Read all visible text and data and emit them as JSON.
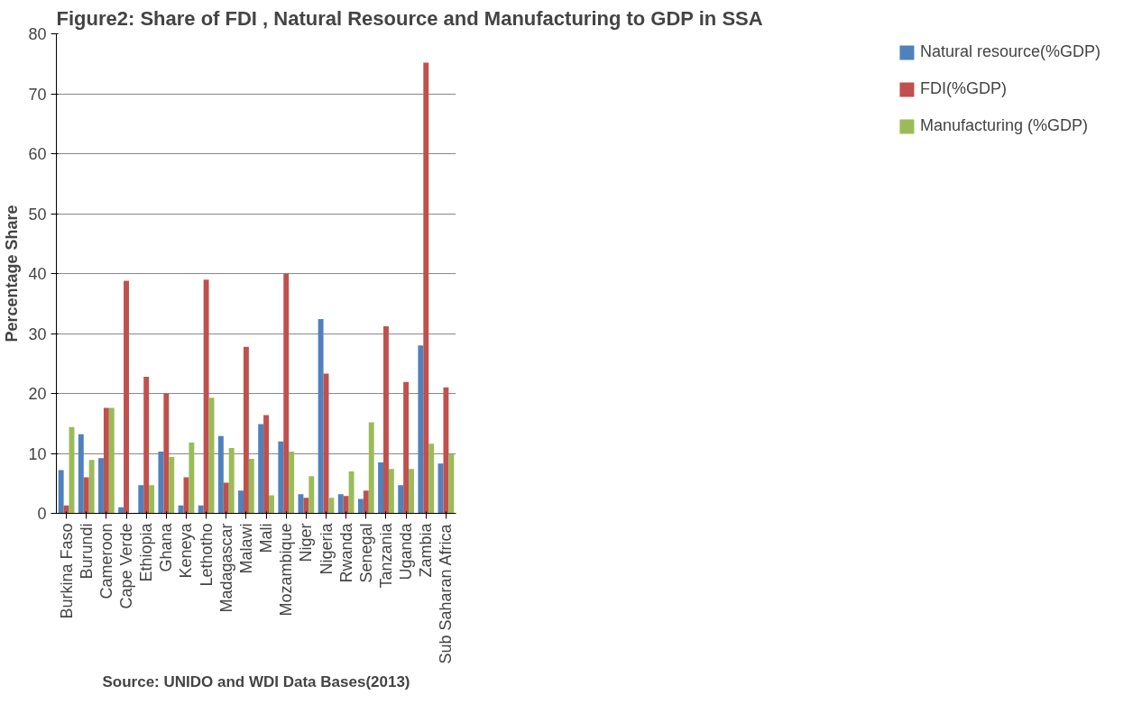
{
  "chart_data": {
    "type": "bar",
    "title": "Figure2: Share of FDI , Natural Resource and Manufacturing to GDP in SSA",
    "ylabel": "Percentage Share",
    "categories": [
      "Burkina Faso",
      "Burundi",
      "Cameroon",
      "Cape Verde",
      "Ethiopia",
      "Ghana",
      "Keneya",
      "Lethotho",
      "Madagascar",
      "Malawi",
      "Mali",
      "Mozambique",
      "Niger",
      "Nigeria",
      "Rwanda",
      "Senegal",
      "Tanzania",
      "Uganda",
      "Zambia",
      "Sub Saharan Africa"
    ],
    "series": [
      {
        "name": "Natural resource(%GDP)",
        "color": "#4f81bd",
        "values": [
          7.2,
          13.2,
          9.2,
          1,
          4.7,
          10.3,
          1.3,
          1.3,
          12.9,
          3.8,
          14.9,
          12,
          3.2,
          32.4,
          3.2,
          2.4,
          8.5,
          4.7,
          28,
          8.3
        ]
      },
      {
        "name": "FDI(%GDP)",
        "color": "#c0504d",
        "values": [
          1.3,
          6,
          17.6,
          38.8,
          22.8,
          20,
          6,
          39,
          5.1,
          27.8,
          16.4,
          40,
          2.6,
          23.3,
          2.9,
          3.8,
          31.2,
          21.9,
          75.2,
          21
        ]
      },
      {
        "name": "Manufacturing (%GDP)",
        "color": "#9bbb59",
        "values": [
          14.4,
          8.9,
          17.6,
          0,
          4.7,
          9.4,
          11.8,
          19.3,
          10.9,
          9.1,
          3,
          10.3,
          6.2,
          2.6,
          7,
          15.2,
          7.4,
          7.4,
          11.6,
          9.9
        ]
      }
    ],
    "ylim": [
      0,
      80
    ],
    "yticks": [
      0,
      10,
      20,
      30,
      40,
      50,
      60,
      70,
      80
    ],
    "grid": "y",
    "legend": "right",
    "annotations": [
      "Source: UNIDO and WDI Data Bases(2013)"
    ]
  }
}
